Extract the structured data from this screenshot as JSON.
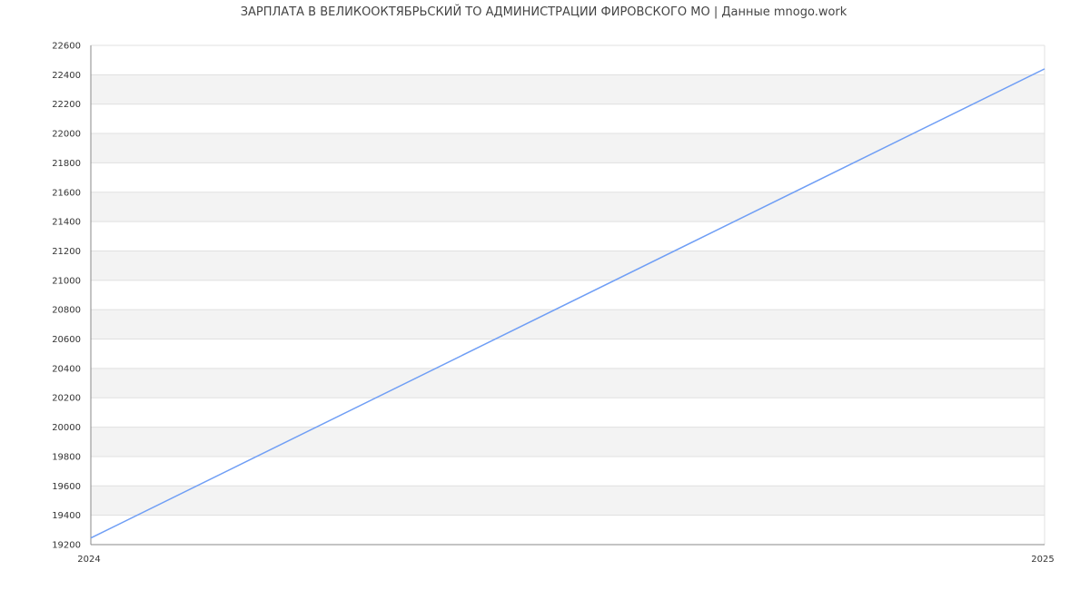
{
  "chart_data": {
    "type": "line",
    "title": "ЗАРПЛАТА В ВЕЛИКООКТЯБРЬСКИЙ ТО АДМИНИСТРАЦИИ ФИРОВСКОГО МО | Данные mnogo.work",
    "x": [
      "2024",
      "2025"
    ],
    "series": [
      {
        "values": [
          19245,
          22440
        ]
      }
    ],
    "xlabel": "",
    "ylabel": "",
    "ylim": [
      19200,
      22600
    ],
    "yticks": [
      19200,
      19400,
      19600,
      19800,
      20000,
      20200,
      20400,
      20600,
      20800,
      21000,
      21200,
      21400,
      21600,
      21800,
      22000,
      22200,
      22400,
      22600
    ],
    "xticks": [
      "2024",
      "2025"
    ],
    "grid": true,
    "line_color": "#6f9ef5",
    "band_color": "#f3f3f3",
    "grid_color": "#e0e0e0",
    "axis_color": "#888888"
  }
}
